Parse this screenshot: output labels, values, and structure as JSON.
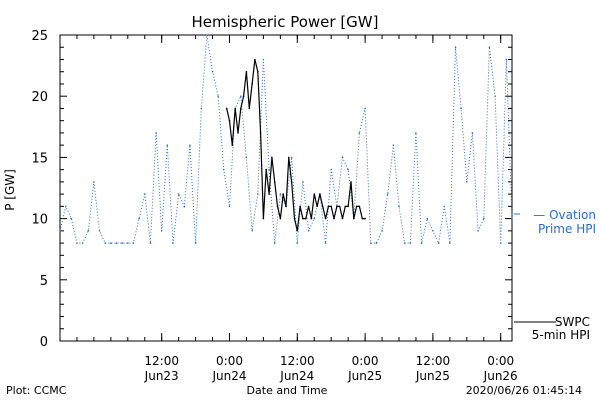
{
  "chart_data": {
    "type": "line",
    "title": "Hemispheric Power [GW]",
    "xlabel": "Date and Time",
    "ylabel": "P [GW]",
    "ylim": [
      0,
      25
    ],
    "yticks": [
      0,
      5,
      10,
      15,
      20,
      25
    ],
    "x_unit": "hours",
    "xlim": [
      "2020-06-22T18:00",
      "2020-06-26T02:00"
    ],
    "xticks": [
      {
        "t": "2020-06-23T12:00",
        "time": "12:00",
        "date": "Jun23"
      },
      {
        "t": "2020-06-24T00:00",
        "time": "0:00",
        "date": "Jun24"
      },
      {
        "t": "2020-06-24T12:00",
        "time": "12:00",
        "date": "Jun24"
      },
      {
        "t": "2020-06-25T00:00",
        "time": "0:00",
        "date": "Jun25"
      },
      {
        "t": "2020-06-25T12:00",
        "time": "12:00",
        "date": "Jun25"
      },
      {
        "t": "2020-06-26T00:00",
        "time": "0:00",
        "date": "Jun26"
      }
    ],
    "grid": false,
    "series": [
      {
        "name_lines": [
          "— Ovation",
          "Prime HPI"
        ],
        "color": "#2b6fc0",
        "style": "dotted",
        "x": [
          "2020-06-22T18:00",
          "2020-06-22T19:00",
          "2020-06-22T20:00",
          "2020-06-22T21:00",
          "2020-06-22T22:00",
          "2020-06-22T23:00",
          "2020-06-23T00:00",
          "2020-06-23T01:00",
          "2020-06-23T02:00",
          "2020-06-23T03:00",
          "2020-06-23T04:00",
          "2020-06-23T05:00",
          "2020-06-23T06:00",
          "2020-06-23T07:00",
          "2020-06-23T08:00",
          "2020-06-23T09:00",
          "2020-06-23T10:00",
          "2020-06-23T11:00",
          "2020-06-23T12:00",
          "2020-06-23T13:00",
          "2020-06-23T14:00",
          "2020-06-23T15:00",
          "2020-06-23T16:00",
          "2020-06-23T17:00",
          "2020-06-23T18:00",
          "2020-06-23T19:00",
          "2020-06-23T20:00",
          "2020-06-23T21:00",
          "2020-06-23T22:00",
          "2020-06-23T23:00",
          "2020-06-24T00:00",
          "2020-06-24T01:00",
          "2020-06-24T02:00",
          "2020-06-24T03:00",
          "2020-06-24T04:00",
          "2020-06-24T05:00",
          "2020-06-24T06:00",
          "2020-06-24T07:00",
          "2020-06-24T08:00",
          "2020-06-24T09:00",
          "2020-06-24T10:00",
          "2020-06-24T11:00",
          "2020-06-24T12:00",
          "2020-06-24T13:00",
          "2020-06-24T14:00",
          "2020-06-24T15:00",
          "2020-06-24T16:00",
          "2020-06-24T17:00",
          "2020-06-24T18:00",
          "2020-06-24T19:00",
          "2020-06-24T20:00",
          "2020-06-24T21:00",
          "2020-06-24T22:00",
          "2020-06-24T23:00",
          "2020-06-25T00:00",
          "2020-06-25T01:00",
          "2020-06-25T02:00",
          "2020-06-25T03:00",
          "2020-06-25T04:00",
          "2020-06-25T05:00",
          "2020-06-25T06:00",
          "2020-06-25T07:00",
          "2020-06-25T08:00",
          "2020-06-25T09:00",
          "2020-06-25T10:00",
          "2020-06-25T11:00",
          "2020-06-25T12:00",
          "2020-06-25T13:00",
          "2020-06-25T14:00",
          "2020-06-25T15:00",
          "2020-06-25T16:00",
          "2020-06-25T17:00",
          "2020-06-25T18:00",
          "2020-06-25T19:00",
          "2020-06-25T20:00",
          "2020-06-25T21:00",
          "2020-06-25T22:00",
          "2020-06-25T23:00",
          "2020-06-26T00:00",
          "2020-06-26T01:00",
          "2020-06-26T02:00"
        ],
        "y": [
          9,
          11,
          10,
          8,
          8,
          9,
          13,
          9,
          8,
          8,
          8,
          8,
          8,
          8,
          10,
          12,
          8,
          17,
          9,
          16,
          8,
          12,
          11,
          16,
          8,
          19,
          25,
          22,
          20,
          14,
          11,
          19,
          20,
          15,
          9,
          12,
          23,
          14,
          8,
          12,
          11,
          15,
          8,
          13,
          9,
          10,
          12,
          8,
          14,
          11,
          15,
          14,
          10,
          17,
          19,
          8,
          8,
          9,
          12,
          16,
          11,
          8,
          8,
          17,
          8,
          10,
          9,
          8,
          11,
          8,
          24,
          19,
          13,
          17,
          9,
          10,
          24,
          20,
          8,
          23,
          10
        ]
      },
      {
        "name_lines": [
          "SWPC",
          "5-min HPI"
        ],
        "color": "#000000",
        "style": "solid",
        "x": [
          "2020-06-23T23:30",
          "2020-06-24T00:00",
          "2020-06-24T00:30",
          "2020-06-24T01:00",
          "2020-06-24T01:30",
          "2020-06-24T02:00",
          "2020-06-24T02:30",
          "2020-06-24T03:00",
          "2020-06-24T03:30",
          "2020-06-24T04:00",
          "2020-06-24T04:30",
          "2020-06-24T05:00",
          "2020-06-24T05:30",
          "2020-06-24T06:00",
          "2020-06-24T06:30",
          "2020-06-24T07:00",
          "2020-06-24T07:30",
          "2020-06-24T08:00",
          "2020-06-24T08:30",
          "2020-06-24T09:00",
          "2020-06-24T09:30",
          "2020-06-24T10:00",
          "2020-06-24T10:30",
          "2020-06-24T11:00",
          "2020-06-24T11:30",
          "2020-06-24T12:00",
          "2020-06-24T12:30",
          "2020-06-24T13:00",
          "2020-06-24T13:30",
          "2020-06-24T14:00",
          "2020-06-24T14:30",
          "2020-06-24T15:00",
          "2020-06-24T15:30",
          "2020-06-24T16:00",
          "2020-06-24T16:30",
          "2020-06-24T17:00",
          "2020-06-24T17:30",
          "2020-06-24T18:00",
          "2020-06-24T18:30",
          "2020-06-24T19:00",
          "2020-06-24T19:30",
          "2020-06-24T20:00",
          "2020-06-24T20:30",
          "2020-06-24T21:00",
          "2020-06-24T21:30",
          "2020-06-24T22:00",
          "2020-06-24T22:30",
          "2020-06-24T23:00",
          "2020-06-24T23:30",
          "2020-06-25T00:00"
        ],
        "y": [
          19,
          18,
          16,
          19,
          17,
          19,
          20,
          22,
          19,
          21,
          23,
          22,
          17,
          10,
          14,
          12,
          15,
          13,
          11,
          10,
          12,
          11,
          15,
          13,
          10,
          9,
          11,
          10,
          10,
          11,
          10,
          12,
          11,
          12,
          11,
          10,
          11,
          11,
          10,
          11,
          11,
          10,
          11,
          11,
          13,
          10,
          11,
          11,
          10,
          10
        ]
      }
    ]
  },
  "footer": {
    "plot_credit": "Plot: CCMC",
    "timestamp": "2020/06/26 01:45:14"
  }
}
